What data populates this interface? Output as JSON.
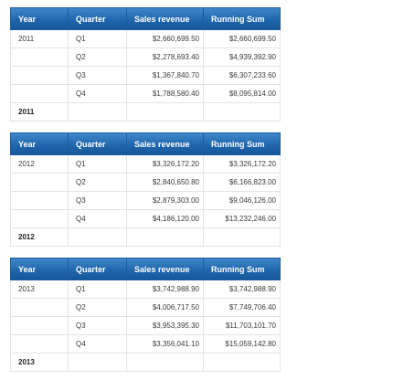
{
  "headers": {
    "year": "Year",
    "quarter": "Quarter",
    "sales": "Sales revenue",
    "running": "Running Sum"
  },
  "blocks": [
    {
      "year": "2011",
      "total_label": "2011",
      "rows": [
        {
          "quarter": "Q1",
          "sales": "$2,660,699.50",
          "running": "$2,660,699.50"
        },
        {
          "quarter": "Q2",
          "sales": "$2,278,693.40",
          "running": "$4,939,392.90"
        },
        {
          "quarter": "Q3",
          "sales": "$1,367,840.70",
          "running": "$6,307,233.60"
        },
        {
          "quarter": "Q4",
          "sales": "$1,788,580.40",
          "running": "$8,095,814.00"
        }
      ]
    },
    {
      "year": "2012",
      "total_label": "2012",
      "rows": [
        {
          "quarter": "Q1",
          "sales": "$3,326,172.20",
          "running": "$3,326,172.20"
        },
        {
          "quarter": "Q2",
          "sales": "$2,840,650.80",
          "running": "$6,166,823.00"
        },
        {
          "quarter": "Q3",
          "sales": "$2,879,303.00",
          "running": "$9,046,126.00"
        },
        {
          "quarter": "Q4",
          "sales": "$4,186,120.00",
          "running": "$13,232,246.00"
        }
      ]
    },
    {
      "year": "2013",
      "total_label": "2013",
      "rows": [
        {
          "quarter": "Q1",
          "sales": "$3,742,988.90",
          "running": "$3,742,988.90"
        },
        {
          "quarter": "Q2",
          "sales": "$4,006,717.50",
          "running": "$7,749,706.40"
        },
        {
          "quarter": "Q3",
          "sales": "$3,953,395.30",
          "running": "$11,703,101.70"
        },
        {
          "quarter": "Q4",
          "sales": "$3,356,041.10",
          "running": "$15,059,142.80"
        }
      ]
    }
  ]
}
